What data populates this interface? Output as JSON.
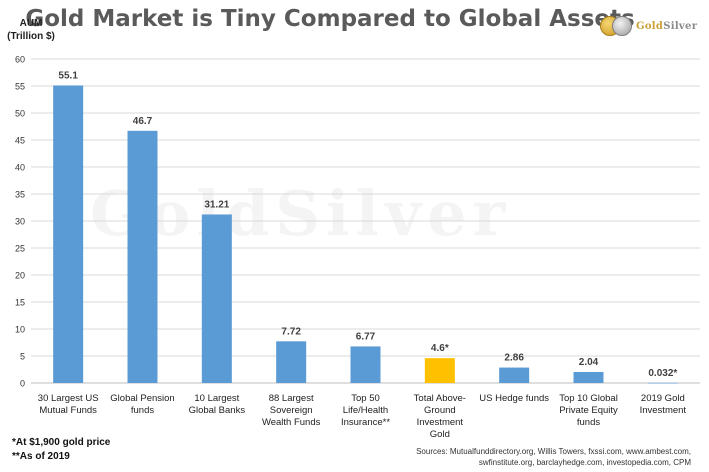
{
  "header": {
    "title": "Gold Market is Tiny Compared to Global Assets",
    "ylabel_line1": "AUM",
    "ylabel_line2": "(Trillion $)",
    "logo_part1": "Gold",
    "logo_part2": "Silver"
  },
  "watermark": "GoldSilver",
  "chart_data": {
    "type": "bar",
    "title": "Gold Market is Tiny Compared to Global Assets",
    "ylabel": "AUM (Trillion $)",
    "xlabel": "",
    "ylim": [
      0,
      60
    ],
    "yticks": [
      0,
      5,
      10,
      15,
      20,
      25,
      30,
      35,
      40,
      45,
      50,
      55,
      60
    ],
    "grid": true,
    "categories": [
      [
        "30 Largest US",
        "Mutual Funds"
      ],
      [
        "Global Pension",
        "funds"
      ],
      [
        "10 Largest",
        "Global Banks"
      ],
      [
        "88 Largest",
        "Sovereign",
        "Wealth Funds"
      ],
      [
        "Top 50",
        "Life/Health",
        "Insurance**"
      ],
      [
        "Total Above-",
        "Ground",
        "Investment",
        "Gold"
      ],
      [
        "US Hedge funds"
      ],
      [
        "Top 10 Global",
        "Private Equity",
        "funds"
      ],
      [
        "2019 Gold",
        "Investment"
      ]
    ],
    "values": [
      55.1,
      46.7,
      31.21,
      7.72,
      6.77,
      4.6,
      2.86,
      2.04,
      0.032
    ],
    "data_labels": [
      "55.1",
      "46.7",
      "31.21",
      "7.72",
      "6.77",
      "4.6*",
      "2.86",
      "2.04",
      "0.032*"
    ],
    "colors": [
      "#5b9bd5",
      "#5b9bd5",
      "#5b9bd5",
      "#5b9bd5",
      "#5b9bd5",
      "#ffc000",
      "#5b9bd5",
      "#5b9bd5",
      "#5b9bd5"
    ]
  },
  "footnotes": {
    "note1": "*At $1,900 gold price",
    "note2": "**As of 2019"
  },
  "sources": {
    "line1": "Sources: Mutualfunddirectory.org, Willis Towers, fxssi.com, www.ambest.com,",
    "line2": "swfinstitute.org, barclayhedge.com, investopedia.com, CPM"
  }
}
